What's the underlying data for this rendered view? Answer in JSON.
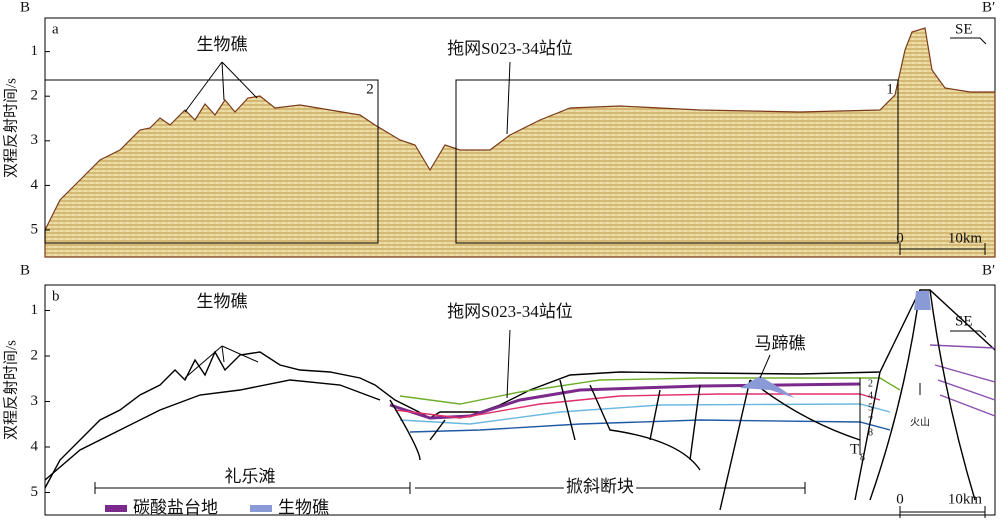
{
  "panels": [
    {
      "label": "a",
      "left": "B",
      "right": "B′",
      "direction": "SE",
      "y_axis": {
        "label": "双程反射时间/s",
        "ticks": [
          1,
          2,
          3,
          4,
          5
        ]
      },
      "annotations": [
        "生物礁",
        "拖网S023-34站位"
      ],
      "boxes": [
        "2",
        "1"
      ],
      "scale": {
        "start": "0",
        "end": "10km"
      }
    },
    {
      "label": "b",
      "left": "B",
      "right": "B′",
      "direction": "SE",
      "y_axis": {
        "label": "双程反射时间/s",
        "ticks": [
          1,
          2,
          3,
          4,
          5
        ]
      },
      "annotations": [
        "生物礁",
        "拖网S023-34站位",
        "马蹄礁",
        "火山"
      ],
      "horizons": [
        "2",
        "4",
        "5",
        "7",
        "8"
      ],
      "base_horizon": {
        "base": "T",
        "sub": "8"
      },
      "zones": [
        "礼乐滩",
        "掀斜断块"
      ],
      "scale": {
        "start": "0",
        "end": "10km"
      }
    }
  ],
  "legend": [
    {
      "label": "碳酸盐台地",
      "color": "#7b2a8c"
    },
    {
      "label": "生物礁",
      "color": "#8a9ad6"
    }
  ]
}
